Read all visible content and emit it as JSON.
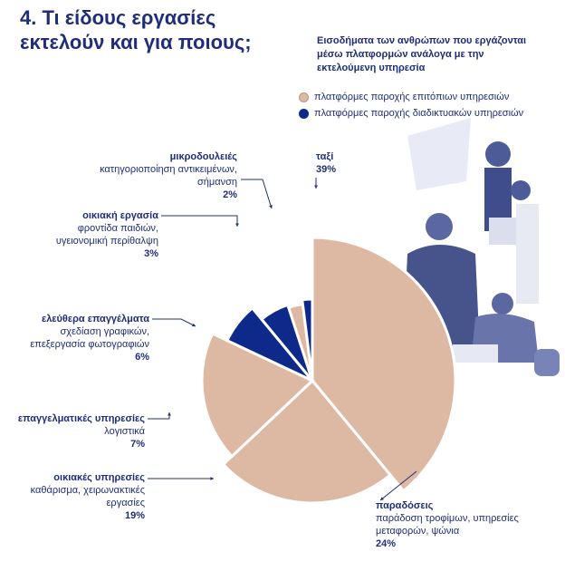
{
  "page": {
    "title": "4. Τι είδους εργασίες εκτελούν και για ποιους;"
  },
  "legend": {
    "heading": "Εισοδήματα των ανθρώπων που εργάζονται μέσω πλατφορμών ανάλογα με την εκτελούμενη υπηρεσία",
    "items": [
      {
        "label": "πλατφόρμες παροχής επιτόπιων υπηρεσιών",
        "color": "#ddb9a4"
      },
      {
        "label": "πλατφόρμες παροχής διαδικτυακών υπηρεσιών",
        "color": "#0d2a8a"
      }
    ]
  },
  "chart_data": {
    "type": "pie",
    "title": "Εισοδήματα των ανθρώπων που εργάζονται μέσω πλατφορμών ανάλογα με την εκτελούμενη υπηρεσία",
    "slices": [
      {
        "name": "ταξί",
        "description": "",
        "value": 39,
        "percent_label": "39%",
        "group": "onsite"
      },
      {
        "name": "παραδόσεις",
        "description": "παράδοση τροφίμων, υπηρεσίες μεταφορών, ψώνια",
        "value": 24,
        "percent_label": "24%",
        "group": "onsite"
      },
      {
        "name": "οικιακές υπηρεσίες",
        "description": "καθάρισμα, χειρωνακτικές εργασίες",
        "value": 19,
        "percent_label": "19%",
        "group": "onsite"
      },
      {
        "name": "επαγγελματικές υπηρεσίες",
        "description": "λογιστικά",
        "value": 7,
        "percent_label": "7%",
        "group": "online"
      },
      {
        "name": "ελεύθερα επαγγέλματα",
        "description": "σχεδίαση γραφικών, επεξεργασία φωτογραφιών",
        "value": 6,
        "percent_label": "6%",
        "group": "online"
      },
      {
        "name": "οικιακή εργασία",
        "description": "φροντίδα παιδιών, υγειονομική περίθαλψη",
        "value": 3,
        "percent_label": "3%",
        "group": "onsite"
      },
      {
        "name": "μικροδουλειές",
        "description": "κατηγοριοποίηση αντικειμένων, σήμανση",
        "value": 2,
        "percent_label": "2%",
        "group": "online"
      }
    ],
    "colors": {
      "onsite": "#ddb9a4",
      "online": "#0d2a8a"
    }
  }
}
